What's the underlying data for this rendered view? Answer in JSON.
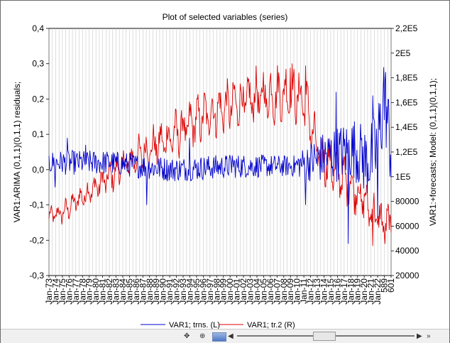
{
  "chart_data": {
    "type": "line",
    "title": "Plot of selected variables (series)",
    "ylabel_left": "VAR1:ARIMA (0,1,1)(0,1,1) residuals;",
    "ylabel_right": "VAR1:+forecasts; Model: (0,1,1)(0,1,1);",
    "ylim_left": [
      -0.3,
      0.4
    ],
    "yticks_left": [
      "0,4",
      "0,3",
      "0,2",
      "0,1",
      "0,0",
      "-0,1",
      "-0,2",
      "-0,3"
    ],
    "ylim_right": [
      20000,
      220000
    ],
    "yticks_right": [
      "2,2E5",
      "2E5",
      "1,8E5",
      "1,6E5",
      "1,4E5",
      "1,2E5",
      "1E5",
      "80000",
      "60000",
      "40000",
      "20000"
    ],
    "xticks": [
      "Jan-73",
      "Jan-74",
      "Jan-75",
      "Jan-76",
      "Jan-77",
      "Jan-78",
      "Jan-79",
      "Jan-80",
      "Jan-81",
      "Jan-82",
      "Jan-83",
      "Jan-84",
      "Jan-85",
      "Jan-86",
      "Jan-87",
      "Jan-88",
      "Jan-89",
      "Jan-90",
      "Jan-91",
      "Jan-92",
      "Jan-93",
      "Jan-94",
      "Jan-95",
      "Jan-96",
      "Jan-97",
      "Jan-98",
      "Jan-99",
      "Jan-00",
      "Jan-01",
      "Jan-02",
      "Jan-03",
      "Jan-04",
      "Jan-05",
      "Jan-06",
      "Jan-07",
      "Jan-08",
      "Jan-09",
      "Jan-10",
      "Jan-11",
      "Jan-12",
      "Jan-13",
      "Jan-14",
      "Jan-15",
      "Jan-16",
      "Jan-17",
      "Jan-18",
      "Jan-19",
      "Jan-20",
      "Jan-21",
      "Jan-22",
      "589",
      "601"
    ],
    "grid": "vertical",
    "legend_position": "bottom",
    "series": [
      {
        "name": "VAR1; trns. (L)",
        "axis": "left",
        "color": "#0000cc",
        "trend": [
          [
            0,
            0.02
          ],
          [
            100,
            0.02
          ],
          [
            200,
            0.0
          ],
          [
            300,
            0.01
          ],
          [
            400,
            0.01
          ],
          [
            420,
            0.02
          ],
          [
            460,
            0.04
          ],
          [
            500,
            0.06
          ],
          [
            520,
            0.02
          ],
          [
            535,
            0.05
          ],
          [
            550,
            0.2
          ],
          [
            560,
            0.05
          ]
        ],
        "amplitude": [
          [
            0,
            0.035
          ],
          [
            100,
            0.035
          ],
          [
            300,
            0.035
          ],
          [
            400,
            0.03
          ],
          [
            440,
            0.07
          ],
          [
            500,
            0.09
          ],
          [
            545,
            0.12
          ],
          [
            560,
            0.12
          ]
        ],
        "extremes": [
          [
            10,
            -0.05
          ],
          [
            30,
            0.09
          ],
          [
            60,
            0.07
          ],
          [
            160,
            -0.1
          ],
          [
            230,
            0.09
          ],
          [
            300,
            0.04
          ],
          [
            420,
            -0.1
          ],
          [
            470,
            0.22
          ],
          [
            490,
            -0.21
          ],
          [
            512,
            0.09
          ],
          [
            530,
            0.21
          ],
          [
            538,
            -0.14
          ],
          [
            548,
            0.29
          ]
        ]
      },
      {
        "name": "VAR1; tr.2 (R)",
        "axis": "right",
        "color": "#dd0000",
        "trend": [
          [
            0,
            68000
          ],
          [
            20,
            70000
          ],
          [
            50,
            82000
          ],
          [
            100,
            100000
          ],
          [
            150,
            118000
          ],
          [
            200,
            132000
          ],
          [
            250,
            148000
          ],
          [
            300,
            158000
          ],
          [
            350,
            165000
          ],
          [
            400,
            168000
          ],
          [
            420,
            160000
          ],
          [
            440,
            118000
          ],
          [
            470,
            105000
          ],
          [
            500,
            90000
          ],
          [
            530,
            72000
          ],
          [
            550,
            60000
          ],
          [
            560,
            62000
          ]
        ],
        "amplitude": [
          [
            0,
            8000
          ],
          [
            100,
            14000
          ],
          [
            200,
            20000
          ],
          [
            300,
            23000
          ],
          [
            400,
            26000
          ],
          [
            450,
            22000
          ],
          [
            500,
            20000
          ],
          [
            560,
            18000
          ]
        ],
        "extremes": [
          [
            0,
            66000
          ],
          [
            395,
            188000
          ],
          [
            420,
            190000
          ],
          [
            530,
            44000
          ],
          [
            560,
            55000
          ]
        ]
      }
    ]
  },
  "toolbar": {
    "nav_left": "◀",
    "nav_right": "▶",
    "expand": "»"
  }
}
